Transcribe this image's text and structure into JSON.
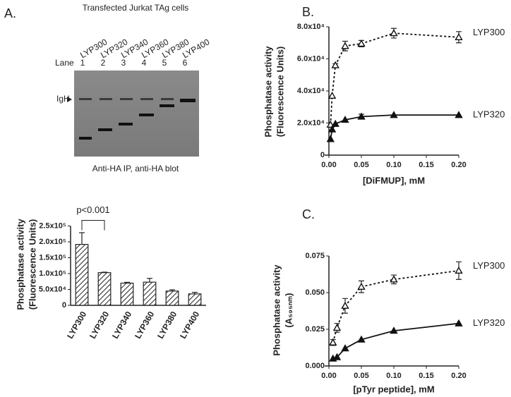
{
  "panel_labels": [
    "A.",
    "B.",
    "C."
  ],
  "blot": {
    "title": "Transfected Jurkat TAg cells",
    "lane_header": "Lane",
    "lanes": [
      "LYP300",
      "LYP320",
      "LYP340",
      "LYP360",
      "LYP380",
      "LYP400"
    ],
    "lane_numbers": [
      "1",
      "2",
      "3",
      "4",
      "5",
      "6"
    ],
    "marker": "IgH",
    "caption": "Anti-HA IP, anti-HA blot"
  },
  "chart_data": [
    {
      "type": "bar",
      "ylabel": [
        "Phosphatase activity",
        "(Fluorescence Units)"
      ],
      "categories": [
        "LYP300",
        "LYP320",
        "LYP340",
        "LYP360",
        "LYP380",
        "LYP400"
      ],
      "values": [
        192000,
        103000,
        70000,
        73000,
        45000,
        36000
      ],
      "errors": [
        37000,
        1500,
        2500,
        12000,
        4000,
        5000
      ],
      "color": "#222222",
      "hatch": true,
      "annotation": "p<0.001",
      "ylim": [
        0,
        250000
      ],
      "yticks": [
        0,
        {
          "value": 50000,
          "label": "5.0x10⁴"
        },
        {
          "value": 100000,
          "label": "1.0x10⁵"
        },
        {
          "value": 150000,
          "label": "1.5x10⁵"
        },
        {
          "value": 200000,
          "label": "2.0x10⁵"
        },
        {
          "value": 250000,
          "label": "2.5x10⁵"
        }
      ]
    },
    {
      "type": "line",
      "ylabel": [
        "Phosphatase activity",
        "(Fluorescence Units)"
      ],
      "xlabel": "[DiFMUP], mM",
      "x": [
        0.0025,
        0.005,
        0.01,
        0.025,
        0.05,
        0.1,
        0.2
      ],
      "series": [
        {
          "name": "LYP300",
          "color": "#111111",
          "dashed": true,
          "marker": "open-triangle",
          "values": [
            19000,
            37000,
            56000,
            68000,
            69500,
            76000,
            73500
          ],
          "errors": [
            null,
            null,
            1000,
            3000,
            2000,
            3000,
            3500
          ]
        },
        {
          "name": "LYP320",
          "color": "#111111",
          "dashed": false,
          "marker": "filled-triangle",
          "values": [
            10000,
            16000,
            19500,
            22000,
            24000,
            25000,
            25000
          ],
          "errors": [
            null,
            null,
            null,
            null,
            1500,
            null,
            null
          ]
        }
      ],
      "xlim": [
        0,
        0.2
      ],
      "xticks": [
        {
          "value": 0,
          "label": "0.00"
        },
        0.05,
        {
          "value": 0.1,
          "label": "0.10"
        },
        0.15,
        {
          "value": 0.2,
          "label": "0.20"
        }
      ],
      "ylim": [
        0,
        80000
      ],
      "yticks": [
        0,
        {
          "value": 20000,
          "label": "2.0x10⁴"
        },
        {
          "value": 40000,
          "label": "4.0x10⁴"
        },
        {
          "value": 60000,
          "label": "6.0x10⁴"
        },
        {
          "value": 80000,
          "label": "8.0x10⁴"
        }
      ]
    },
    {
      "type": "line",
      "ylabel": [
        "Phosphatase activity",
        "(A₅₉₅ₙₘ)"
      ],
      "xlabel": "[pTyr peptide], mM",
      "x": [
        0.00625,
        0.0125,
        0.025,
        0.05,
        0.1,
        0.2
      ],
      "series": [
        {
          "name": "LYP300",
          "color": "#111111",
          "dashed": true,
          "marker": "open-triangle",
          "values": [
            0.016,
            0.026,
            0.041,
            0.054,
            0.059,
            0.065
          ],
          "errors": [
            0.002,
            0.003,
            0.005,
            0.004,
            0.003,
            0.006
          ]
        },
        {
          "name": "LYP320",
          "color": "#111111",
          "dashed": false,
          "marker": "filled-triangle",
          "values": [
            0.005,
            0.006,
            0.012,
            0.018,
            0.024,
            0.029
          ],
          "errors": [
            null,
            null,
            null,
            null,
            null,
            null
          ]
        }
      ],
      "xlim": [
        0,
        0.2
      ],
      "xticks": [
        {
          "value": 0,
          "label": "0.00"
        },
        0.05,
        {
          "value": 0.1,
          "label": "0.10"
        },
        0.15,
        {
          "value": 0.2,
          "label": "0.20"
        }
      ],
      "ylim": [
        0,
        0.075
      ],
      "yticks": [
        {
          "value": 0,
          "label": "0.000"
        },
        0.025,
        {
          "value": 0.05,
          "label": "0.050"
        },
        0.075
      ]
    }
  ]
}
